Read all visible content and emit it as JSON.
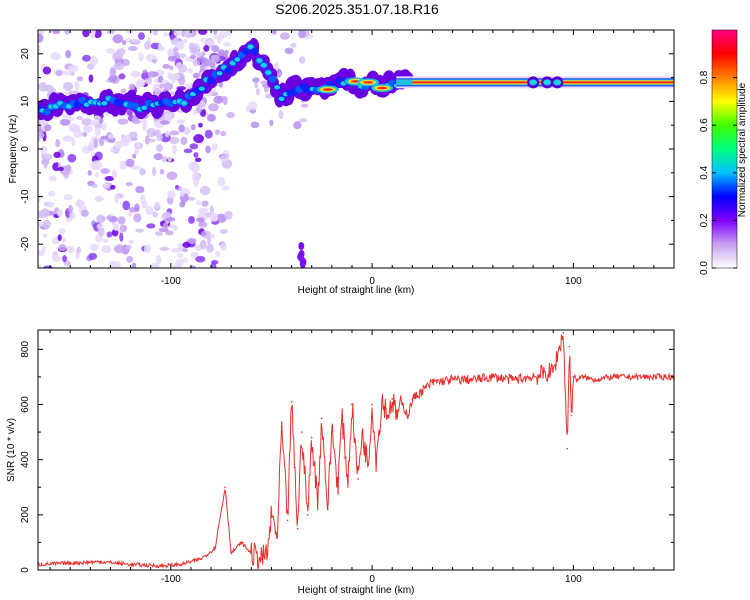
{
  "title": "S206.2025.351.07.18.R16",
  "chart_data": [
    {
      "type": "heatmap",
      "xlabel": "Height of straight line (km)",
      "ylabel": "Frequency (Hz)",
      "xlim": [
        -166,
        150
      ],
      "ylim": [
        -25,
        25
      ],
      "xticks": [
        -100,
        0,
        100
      ],
      "xtick_labels": [
        "-100",
        "0",
        "100"
      ],
      "yticks": [
        -20,
        -10,
        0,
        10,
        20
      ],
      "ytick_labels": [
        "-20",
        "-10",
        "0",
        "10",
        "20"
      ],
      "ridge": {
        "x": [
          -166,
          -150,
          -130,
          -115,
          -100,
          -88,
          -80,
          -72,
          -66,
          -60,
          -56,
          -52,
          -48,
          -45,
          -42,
          -40,
          -35,
          -30,
          -25,
          -20,
          -15,
          -10,
          -5,
          0,
          5,
          10,
          15,
          20,
          40,
          60,
          75,
          85,
          92,
          95,
          100,
          120,
          150
        ],
        "y": [
          8,
          9.5,
          10,
          9,
          9.5,
          11,
          15,
          17,
          19,
          21,
          19,
          17,
          13,
          11,
          12,
          12.5,
          13,
          12.5,
          12.5,
          13,
          14,
          14,
          13,
          14,
          13,
          14,
          14,
          14,
          14,
          14,
          14,
          14,
          14,
          14,
          14,
          14,
          14
        ]
      },
      "colorbar": {
        "label": "Normalized spectral amplitude",
        "range": [
          0,
          1
        ],
        "ticks": [
          0.0,
          0.2,
          0.4,
          0.6,
          0.8
        ],
        "tick_labels": [
          "0.0",
          "0.2",
          "0.4",
          "0.6",
          "0.8"
        ],
        "colors": [
          "#ffffff",
          "#c8a0f0",
          "#8000ff",
          "#0000ff",
          "#00c0ff",
          "#00ff80",
          "#40ff00",
          "#ffff00",
          "#ff8000",
          "#ff0000",
          "#ff0080"
        ]
      }
    },
    {
      "type": "line",
      "xlabel": "Height of straight line (km)",
      "ylabel": "SNR (10 * v/v)",
      "xlim": [
        -166,
        150
      ],
      "ylim": [
        0,
        870
      ],
      "xticks": [
        -100,
        0,
        100
      ],
      "xtick_labels": [
        "-100",
        "0",
        "100"
      ],
      "yticks": [
        0,
        200,
        400,
        600,
        800
      ],
      "ytick_labels": [
        "0",
        "200",
        "400",
        "600",
        "800"
      ],
      "color": "#e8302e",
      "series": [
        {
          "name": "SNR",
          "x": [
            -166,
            -150,
            -135,
            -120,
            -105,
            -95,
            -85,
            -78,
            -73,
            -70,
            -65,
            -60,
            -55,
            -52,
            -50,
            -47,
            -45,
            -42,
            -40,
            -37,
            -35,
            -32,
            -30,
            -27,
            -25,
            -22,
            -20,
            -17,
            -15,
            -12,
            -10,
            -7,
            -5,
            -2,
            0,
            2,
            5,
            8,
            10,
            12,
            15,
            18,
            20,
            25,
            30,
            40,
            50,
            60,
            70,
            80,
            90,
            95,
            97,
            98,
            99,
            100,
            102,
            105,
            110,
            120,
            130,
            140,
            150
          ],
          "y": [
            20,
            25,
            30,
            20,
            15,
            20,
            40,
            80,
            300,
            60,
            100,
            60,
            40,
            60,
            200,
            120,
            520,
            180,
            610,
            150,
            500,
            200,
            480,
            250,
            550,
            220,
            520,
            300,
            560,
            320,
            600,
            330,
            500,
            380,
            600,
            400,
            620,
            560,
            620,
            560,
            600,
            560,
            620,
            650,
            680,
            690,
            690,
            700,
            690,
            700,
            720,
            860,
            440,
            810,
            560,
            700,
            690,
            700,
            690,
            700,
            700,
            700,
            700
          ]
        }
      ]
    }
  ]
}
